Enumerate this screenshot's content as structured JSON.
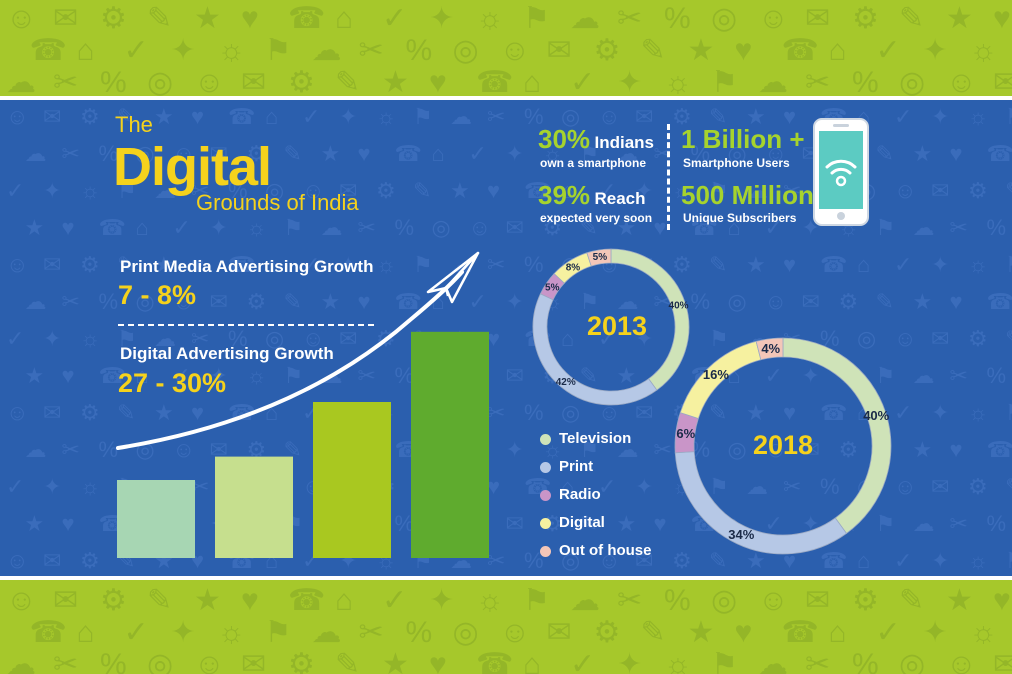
{
  "title": {
    "the": "The",
    "main": "Digital",
    "sub": "Grounds of India"
  },
  "growth": {
    "print_label": "Print Media Advertising Growth",
    "print_value": "7 - 8%",
    "digital_label": "Digital Advertising Growth",
    "digital_value": "27 - 30%"
  },
  "stats": {
    "s1_big": "30%",
    "s1_word": "Indians",
    "s1_small": "own a smartphone",
    "s2_big": "39%",
    "s2_word": "Reach",
    "s2_small": "expected very soon",
    "s3_big": "1 Billion +",
    "s3_small": "Smartphone Users",
    "s4_big": "500 Million",
    "s4_small": "Unique Subscribers"
  },
  "colors": {
    "background": "#2b5fae",
    "band": "#a6c82b",
    "accent": "#f5d21c",
    "bar1": "#a7d6b3",
    "bar2": "#c6df8e",
    "bar3": "#a9c820",
    "bar4": "#5fab2e",
    "television": "#cfe3b8",
    "print": "#b6c8e6",
    "radio": "#c995c8",
    "digital": "#f6f1a0",
    "outhouse": "#f3c6b8"
  },
  "icons": [
    "phone-icon",
    "wifi-icon",
    "paper-plane-icon",
    "growth-arrow-icon"
  ],
  "chart_data": [
    {
      "type": "bar",
      "categories": [
        "",
        "",
        "",
        ""
      ],
      "values": [
        1.0,
        1.3,
        2.0,
        2.9
      ]
    },
    {
      "type": "pie",
      "title": "2013",
      "categories": [
        "Television",
        "Print",
        "Radio",
        "Digital",
        "Out of house"
      ],
      "values": [
        40,
        42,
        5,
        8,
        5
      ],
      "labels": [
        "40%",
        "42%",
        "5%",
        "8%",
        "5%"
      ]
    },
    {
      "type": "pie",
      "title": "2018",
      "categories": [
        "Television",
        "Print",
        "Radio",
        "Digital",
        "Out of house"
      ],
      "values": [
        40,
        34,
        6,
        16,
        4
      ],
      "labels": [
        "40%",
        "34%",
        "6%",
        "16%",
        "4%"
      ]
    }
  ],
  "legend": [
    {
      "label": "Television",
      "color": "#cfe3b8"
    },
    {
      "label": "Print",
      "color": "#b6c8e6"
    },
    {
      "label": "Radio",
      "color": "#c995c8"
    },
    {
      "label": "Digital",
      "color": "#f6f1a0"
    },
    {
      "label": "Out of house",
      "color": "#f3c6b8"
    }
  ]
}
